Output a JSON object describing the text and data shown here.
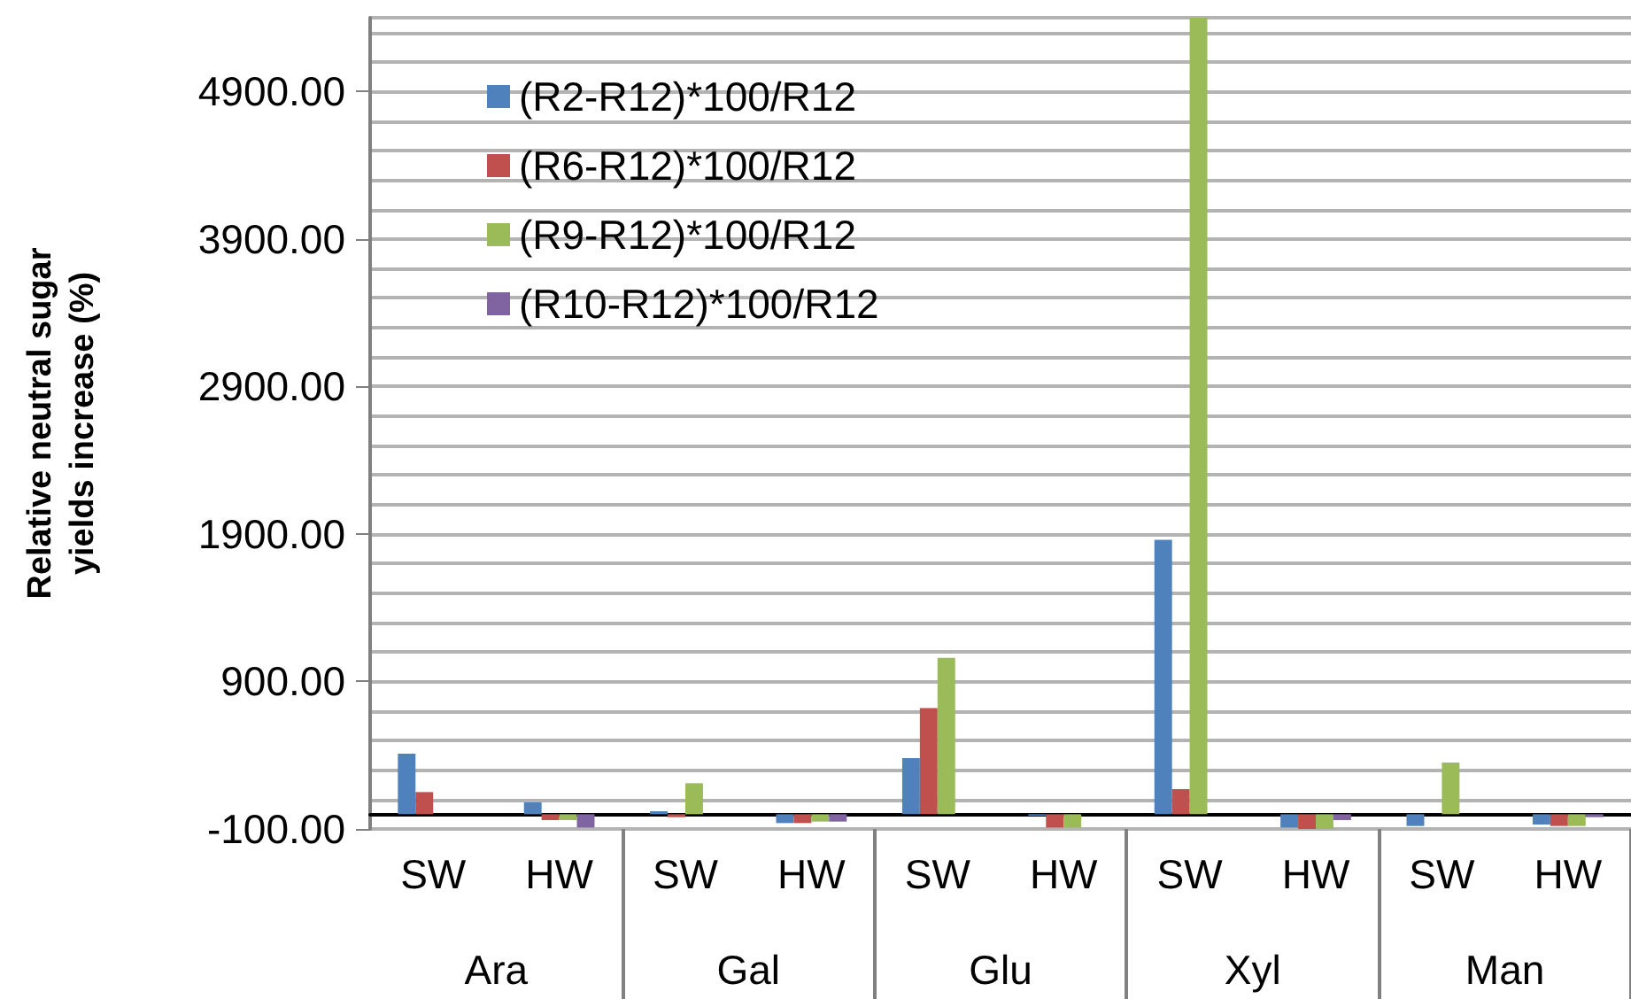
{
  "chart_data": {
    "type": "bar",
    "ylabel": "Relative neutral sugar yields increase (%)",
    "categories": [
      "SW",
      "HW",
      "SW",
      "HW",
      "SW",
      "HW",
      "SW",
      "HW",
      "SW",
      "HW"
    ],
    "annotations": [
      "Ara",
      "Gal",
      "Glu",
      "Xyl",
      "Man"
    ],
    "series": [
      {
        "name": "(R2-R12)*100/R12",
        "color": "#4f81bd",
        "values": [
          410,
          80,
          20,
          -60,
          380,
          -10,
          1860,
          -90,
          -80,
          -70
        ]
      },
      {
        "name": "(R6-R12)*100/R12",
        "color": "#c0504d",
        "values": [
          150,
          -40,
          -20,
          -60,
          720,
          -90,
          170,
          -100,
          0,
          -80
        ]
      },
      {
        "name": "(R9-R12)*100/R12",
        "color": "#9bbb59",
        "values": [
          0,
          -40,
          210,
          -50,
          1060,
          -90,
          5400,
          -100,
          350,
          -80
        ]
      },
      {
        "name": "(R10-R12)*100/R12",
        "color": "#8064a2",
        "values": [
          0,
          -90,
          0,
          -50,
          0,
          0,
          0,
          -40,
          0,
          -20
        ]
      }
    ],
    "ylim": [
      -100,
      5400
    ],
    "yticks": [
      {
        "value": -100,
        "label": "-100.00"
      },
      {
        "value": 900,
        "label": "900.00"
      },
      {
        "value": 1900,
        "label": "1900.00"
      },
      {
        "value": 2900,
        "label": "2900.00"
      },
      {
        "value": 3900,
        "label": "3900.00"
      },
      {
        "value": 4900,
        "label": "4900.00"
      }
    ],
    "grid": true,
    "legend": "top left"
  }
}
